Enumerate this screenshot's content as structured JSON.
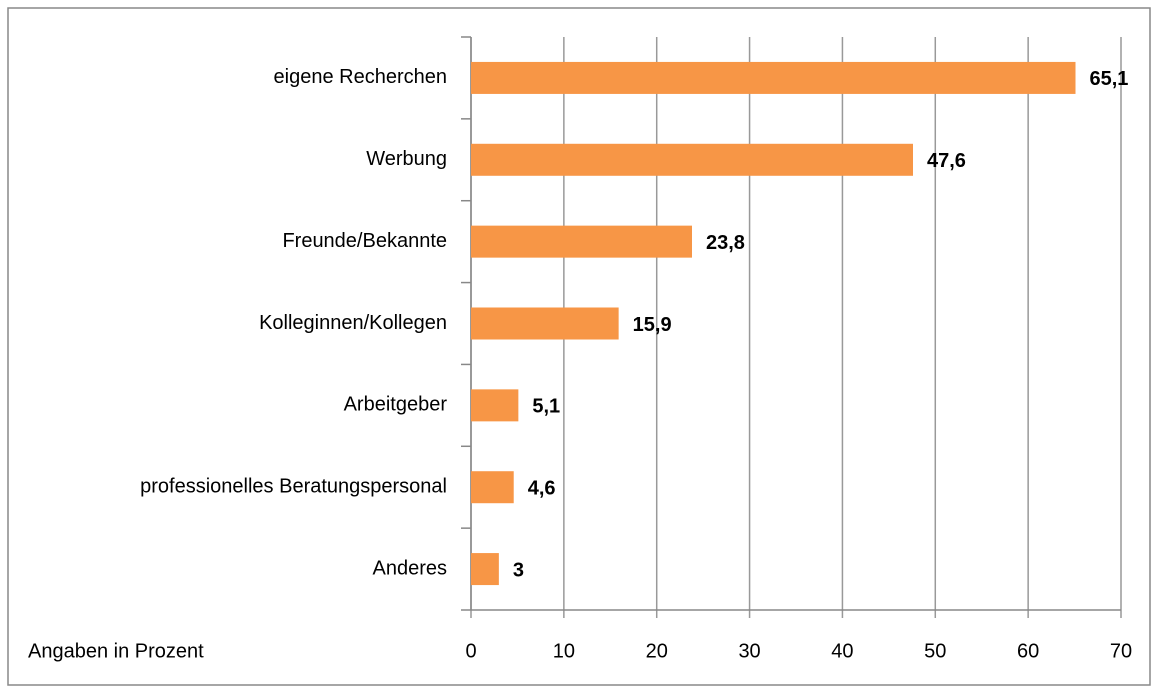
{
  "chart_data": {
    "type": "bar",
    "orientation": "horizontal",
    "categories": [
      "eigene Recherchen",
      "Werbung",
      "Freunde/Bekannte",
      "Kolleginnen/Kollegen",
      "Arbeitgeber",
      "professionelles Beratungspersonal",
      "Anderes"
    ],
    "values": [
      65.1,
      47.6,
      23.8,
      15.9,
      5.1,
      4.6,
      3
    ],
    "value_labels": [
      "65,1",
      "47,6",
      "23,8",
      "15,9",
      "5,1",
      "4,6",
      "3"
    ],
    "color": "#f79646",
    "x_axis_label": "Angaben in Prozent",
    "xlim": [
      0,
      70
    ],
    "xticks": [
      0,
      10,
      20,
      30,
      40,
      50,
      60,
      70
    ],
    "grid": true
  }
}
